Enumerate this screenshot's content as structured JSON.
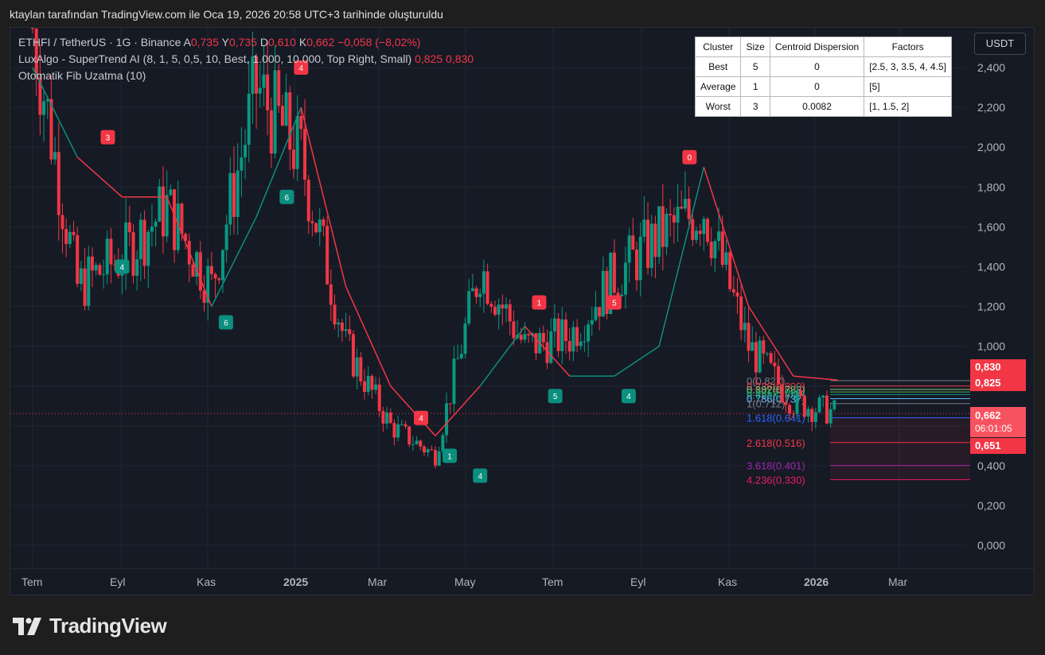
{
  "caption": "ktaylan tarafından TradingView.com ile Oca 19, 2026 20:58 UTC+3 tarihinde oluşturuldu",
  "legend": {
    "symbol": "ETHFI / TetherUS · 1G · Binance",
    "open_label": "A",
    "open_value": "0,735",
    "high_label": "Y",
    "high_value": "0,735",
    "low_label": "D",
    "low_value": "0,610",
    "close_label": "K",
    "close_value": "0,662",
    "change": "−0,058 (−8,02%)",
    "indicator1": "LuxAlgo - SuperTrend AI (8, 1, 5, 0,5, 10, Best, 1.000, 10.000, Top Right, Small)",
    "indicator1_v1": "0,825",
    "indicator1_v2": "0,830",
    "indicator2": "Otomatik Fib Uzatma (10)"
  },
  "currency_button": "USDT",
  "table": {
    "headers": [
      "Cluster",
      "Size",
      "Centroid Dispersion",
      "Factors"
    ],
    "rows": [
      {
        "cluster": "Best",
        "size": "5",
        "dispersion": "0",
        "factors": "[2.5, 3, 3.5, 4, 4.5]"
      },
      {
        "cluster": "Average",
        "size": "1",
        "dispersion": "0",
        "factors": "[5]"
      },
      {
        "cluster": "Worst",
        "size": "3",
        "dispersion": "0.0082",
        "factors": "[1, 1.5, 2]"
      }
    ]
  },
  "price_tags": [
    {
      "label": "0,830",
      "color": "#f23645"
    },
    {
      "label": "0,825",
      "color": "#f23645"
    },
    {
      "label": "0,662",
      "sub": "06:01:05",
      "color": "#f7525f"
    },
    {
      "label": "0,651",
      "color": "#f23645"
    }
  ],
  "logo": "TradingView",
  "colors": {
    "up": "#089981",
    "down": "#f23645",
    "bg": "#161a25",
    "grid": "#232632",
    "axis_text": "#b2b5be"
  },
  "chart_data": {
    "type": "line",
    "title": "ETHFI / TetherUS · 1G · Binance",
    "y_axis": {
      "ticks": [
        "0,000",
        "0,200",
        "0,400",
        "0,600",
        "0,800",
        "1,000",
        "1,200",
        "1,400",
        "1,600",
        "1,800",
        "2,000",
        "2,200",
        "2,400"
      ],
      "range": [
        0,
        2.4
      ],
      "position": "right"
    },
    "x_axis": {
      "ticks": [
        {
          "label": "Tem",
          "bold": false
        },
        {
          "label": "Eyl",
          "bold": false
        },
        {
          "label": "Kas",
          "bold": false
        },
        {
          "label": "2025",
          "bold": true
        },
        {
          "label": "Mar",
          "bold": false
        },
        {
          "label": "May",
          "bold": false
        },
        {
          "label": "Tem",
          "bold": false
        },
        {
          "label": "Eyl",
          "bold": false
        },
        {
          "label": "Kas",
          "bold": false
        },
        {
          "label": "2026",
          "bold": true
        },
        {
          "label": "Mar",
          "bold": false
        }
      ]
    },
    "grid": true,
    "price_series": {
      "name": "ETHFI / TetherUS",
      "x": [
        "Tem 2024",
        "Ağu 2024",
        "Eyl 2024",
        "Eki 2024",
        "Kas 2024",
        "Ara 2024",
        "Oca 2025",
        "Şub 2025",
        "Mar 2025",
        "Nis 2025",
        "May 2025",
        "Haz 2025",
        "Tem 2025",
        "Ağu 2025",
        "Eyl 2025",
        "Eki 2025",
        "Kas 2025",
        "Ara 2025",
        "Oca 2026"
      ],
      "values": [
        2.6,
        1.3,
        1.45,
        1.7,
        1.3,
        2.3,
        1.95,
        1.0,
        0.6,
        0.45,
        1.4,
        1.0,
        1.05,
        1.35,
        1.55,
        1.7,
        1.0,
        0.72,
        0.662
      ]
    },
    "supertrend": {
      "x": [
        "Tem 2024",
        "Ağu 2024",
        "Eyl 2024",
        "Eki 2024",
        "Kas 2024",
        "Ara 2024",
        "Oca 2025",
        "Şub 2025",
        "Mar 2025",
        "Nis 2025",
        "May 2025",
        "Haz 2025",
        "Tem 2025",
        "Ağu 2025",
        "Eyl 2025",
        "Eki 2025",
        "Kas 2025",
        "Ara 2025",
        "Oca 2026"
      ],
      "values": [
        2.4,
        1.95,
        1.75,
        1.75,
        1.2,
        1.65,
        2.2,
        1.3,
        0.8,
        0.55,
        0.8,
        1.1,
        0.85,
        0.85,
        1.0,
        1.9,
        1.2,
        0.85,
        0.83
      ]
    },
    "signals": [
      {
        "label": "3",
        "side": "sell",
        "x": "Eyl 2024",
        "y": 2.05
      },
      {
        "label": "4",
        "side": "buy",
        "x": "Eyl 2024",
        "y": 1.4
      },
      {
        "label": "6",
        "side": "buy",
        "x": "Kas 2024",
        "y": 1.12
      },
      {
        "label": "6",
        "side": "buy",
        "x": "Oca 2025",
        "y": 1.75
      },
      {
        "label": "4",
        "side": "sell",
        "x": "Oca 2025",
        "y": 2.4
      },
      {
        "label": "1",
        "side": "buy",
        "x": "Nis 2025",
        "y": 0.45
      },
      {
        "label": "4",
        "side": "sell",
        "x": "Nis 2025",
        "y": 0.64
      },
      {
        "label": "4",
        "side": "buy",
        "x": "May 2025",
        "y": 0.35
      },
      {
        "label": "1",
        "side": "sell",
        "x": "Haz 2025",
        "y": 1.22
      },
      {
        "label": "5",
        "side": "buy",
        "x": "Tem 2025",
        "y": 0.75
      },
      {
        "label": "5",
        "side": "sell",
        "x": "Ağu 2025",
        "y": 1.22
      },
      {
        "label": "4",
        "side": "buy",
        "x": "Ağu 2025",
        "y": 0.75
      },
      {
        "label": "0",
        "side": "sell",
        "x": "Eki 2025",
        "y": 1.95
      }
    ],
    "fib_levels": [
      {
        "label": "0(0.827)",
        "value": 0.827,
        "color": "#787b86"
      },
      {
        "label": "0.236(0.800)",
        "value": 0.8,
        "color": "#f23645"
      },
      {
        "label": "0.382(0.783)",
        "value": 0.783,
        "color": "#81c784"
      },
      {
        "label": "0.5(0.770)",
        "value": 0.77,
        "color": "#4caf50"
      },
      {
        "label": "0.618(0.757)",
        "value": 0.757,
        "color": "#089981"
      },
      {
        "label": "0.786(0.737)",
        "value": 0.737,
        "color": "#64b5f6"
      },
      {
        "label": "1(0.712)",
        "value": 0.712,
        "color": "#787b86"
      },
      {
        "label": "1.618(0.641)",
        "value": 0.641,
        "color": "#2962ff"
      },
      {
        "label": "2.618(0.516)",
        "value": 0.516,
        "color": "#f23645"
      },
      {
        "label": "3.618(0.401)",
        "value": 0.401,
        "color": "#9c27b0"
      },
      {
        "label": "4.236(0.330)",
        "value": 0.33,
        "color": "#e91e63"
      }
    ],
    "last_price": 0.662
  }
}
